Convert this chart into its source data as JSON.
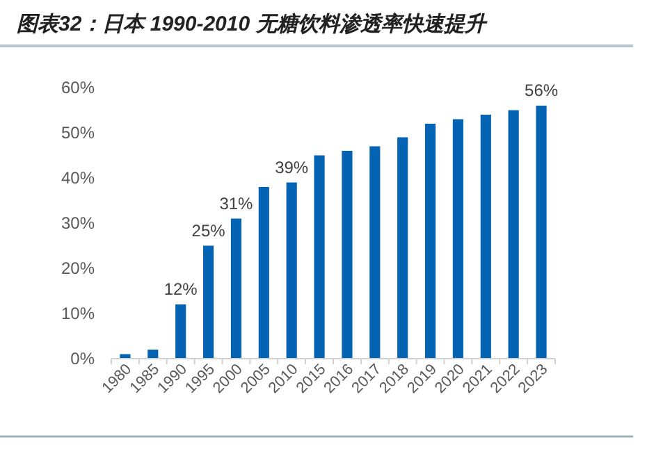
{
  "chart_data": {
    "type": "bar",
    "title": "图表32：日本 1990-2010 无糖饮料渗透率快速提升",
    "categories": [
      "1980",
      "1985",
      "1990",
      "1995",
      "2000",
      "2005",
      "2010",
      "2015",
      "2016",
      "2017",
      "2018",
      "2019",
      "2020",
      "2021",
      "2022",
      "2023"
    ],
    "values": [
      1,
      2,
      12,
      25,
      31,
      38,
      39,
      45,
      46,
      47,
      49,
      52,
      53,
      54,
      55,
      56
    ],
    "value_labels": [
      null,
      null,
      "12%",
      "25%",
      "31%",
      null,
      "39%",
      null,
      null,
      null,
      null,
      null,
      null,
      null,
      null,
      "56%"
    ],
    "color": "#0563b4",
    "ylim": [
      0,
      60
    ],
    "yticks": [
      {
        "value": 0,
        "label": "0%"
      },
      {
        "value": 10,
        "label": "10%"
      },
      {
        "value": 20,
        "label": "20%"
      },
      {
        "value": 30,
        "label": "30%"
      },
      {
        "value": 40,
        "label": "40%"
      },
      {
        "value": 50,
        "label": "50%"
      },
      {
        "value": 60,
        "label": "60%"
      }
    ],
    "grid": false
  }
}
